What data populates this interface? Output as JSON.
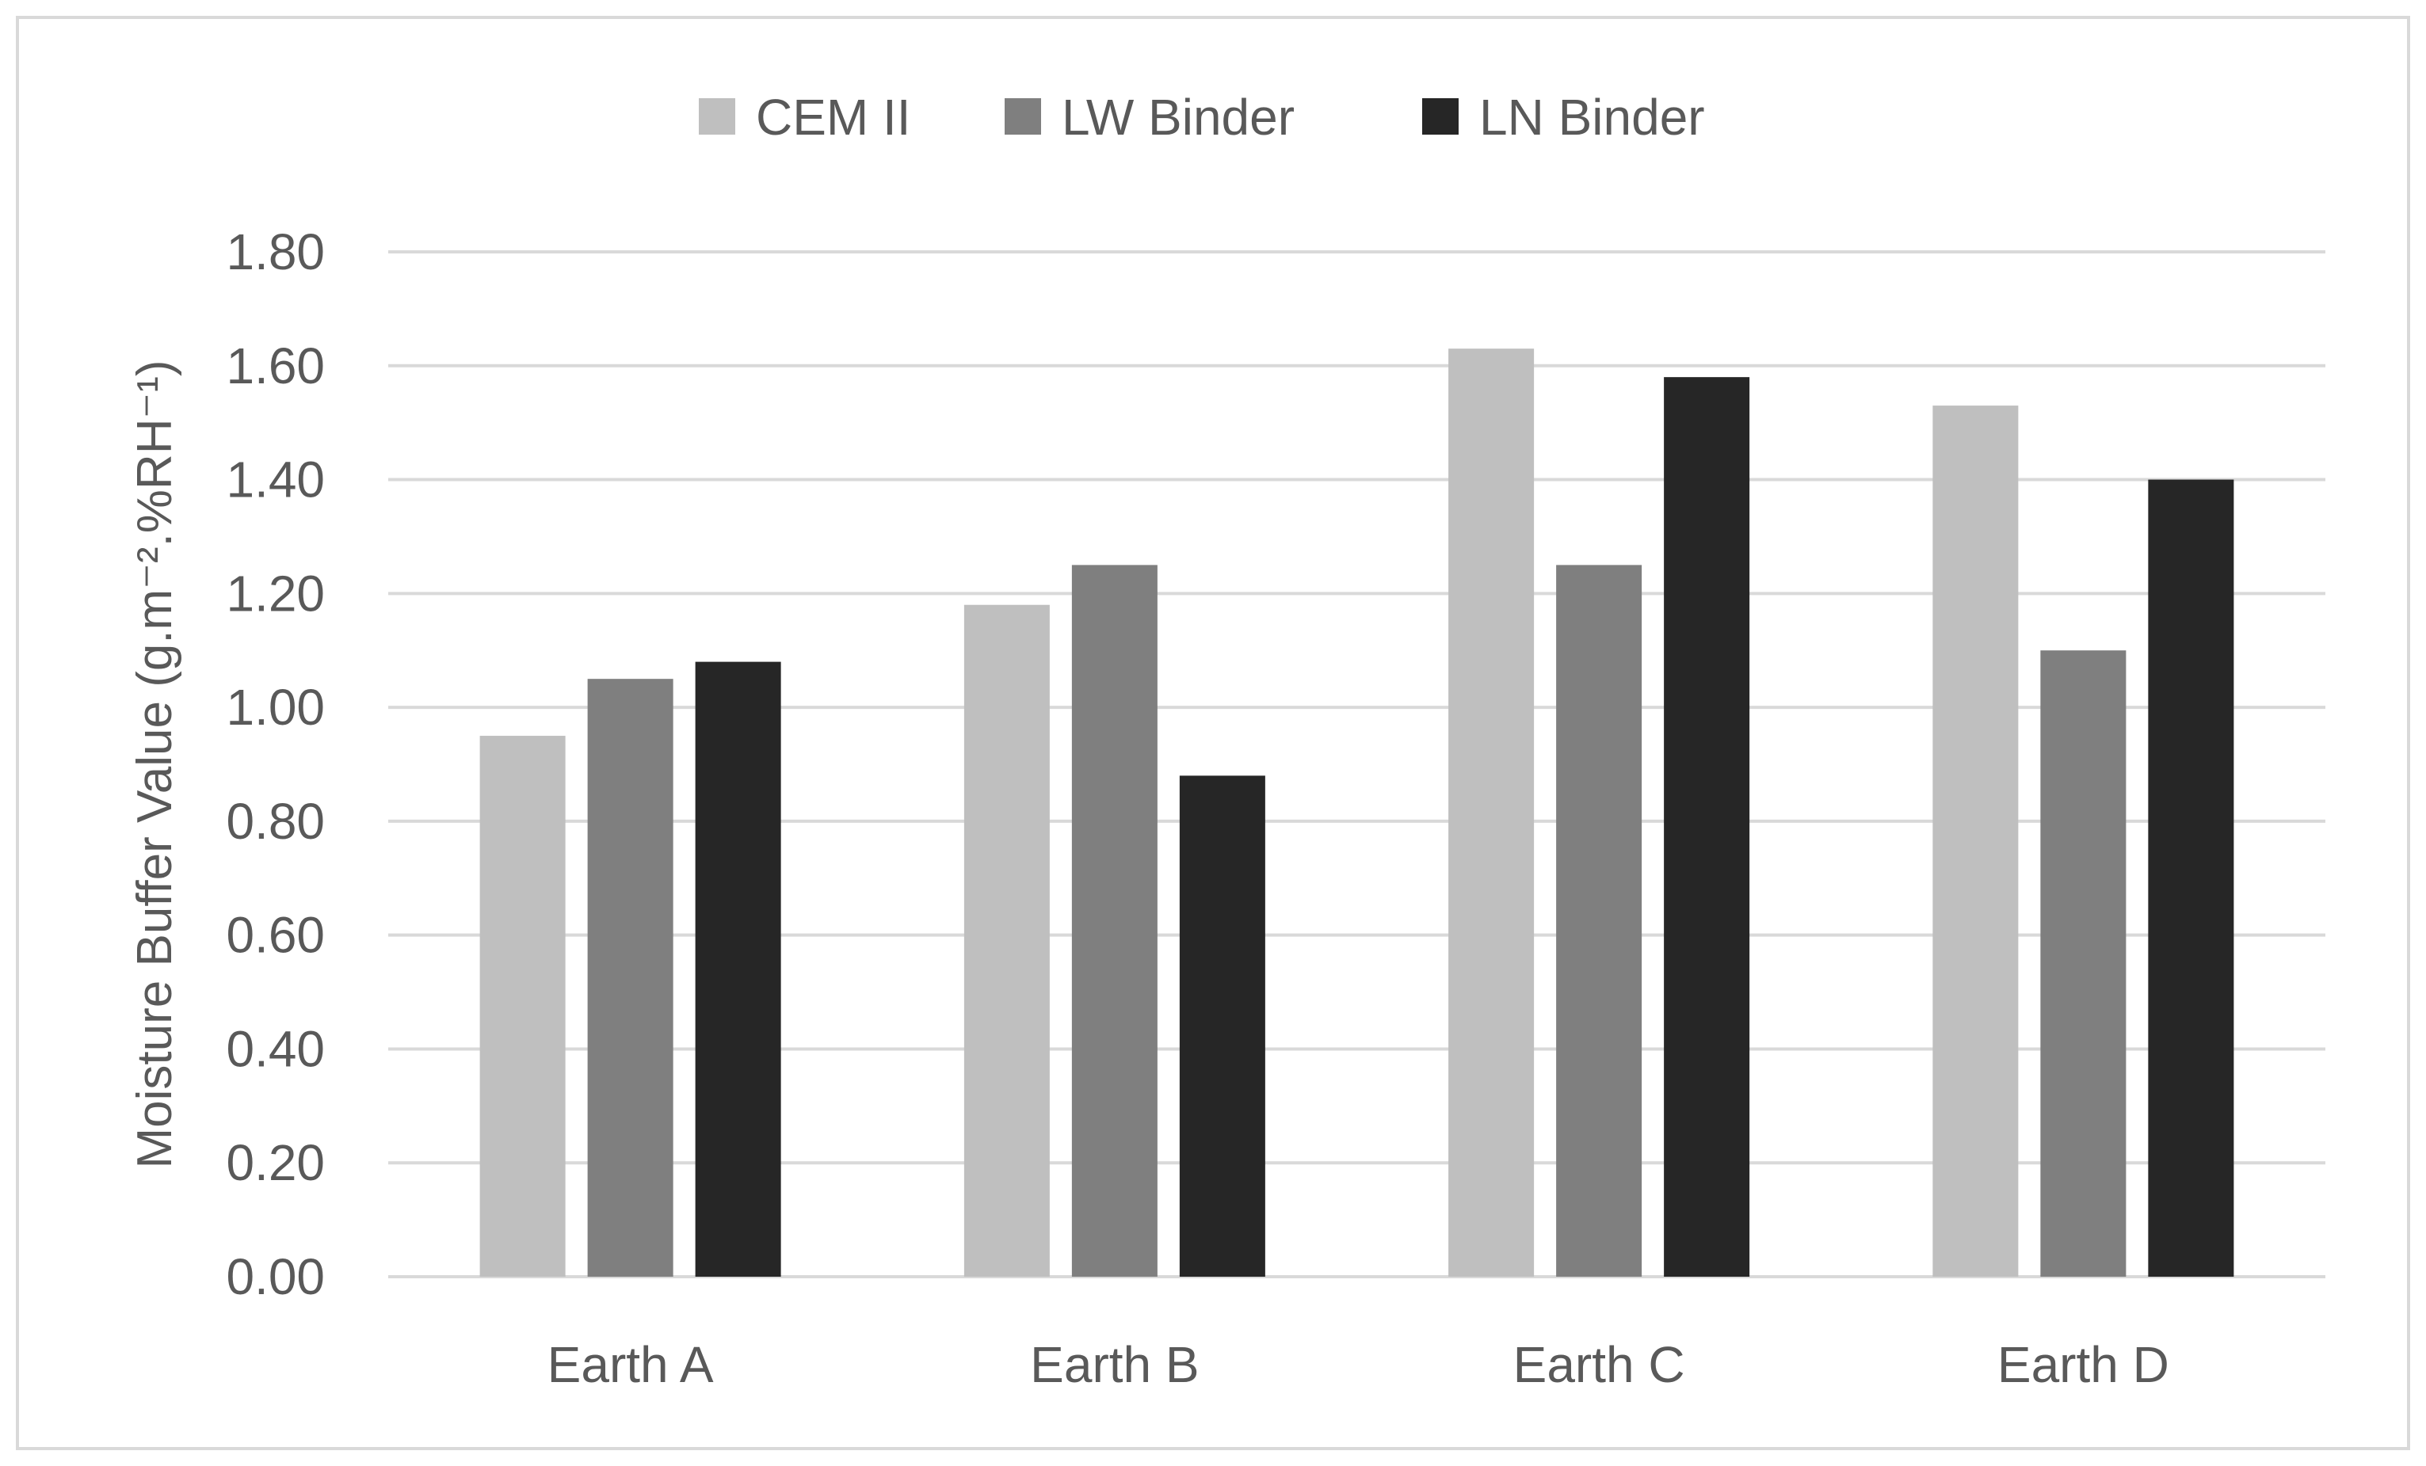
{
  "chart_data": {
    "type": "bar",
    "title": "",
    "xlabel": "",
    "ylabel": "Moisture Buffer Value (g.m⁻².%RH⁻¹)",
    "categories": [
      "Earth A",
      "Earth B",
      "Earth C",
      "Earth D"
    ],
    "ylim": [
      0,
      1.8
    ],
    "yticks": [
      "0.00",
      "0.20",
      "0.40",
      "0.60",
      "0.80",
      "1.00",
      "1.20",
      "1.40",
      "1.60",
      "1.80"
    ],
    "grid": true,
    "legend_position": "top-center",
    "series": [
      {
        "name": "CEM II",
        "color": "#bfbfbf",
        "values": [
          0.95,
          1.18,
          1.63,
          1.53
        ]
      },
      {
        "name": "LW Binder",
        "color": "#7f7f7f",
        "values": [
          1.05,
          1.25,
          1.25,
          1.1
        ]
      },
      {
        "name": "LN Binder",
        "color": "#262626",
        "values": [
          1.08,
          0.88,
          1.58,
          1.4
        ]
      }
    ]
  }
}
